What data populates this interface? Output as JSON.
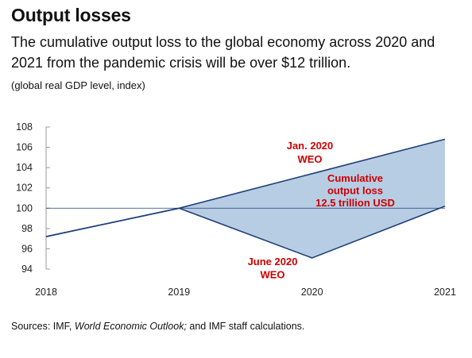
{
  "header": {
    "title": "Output losses",
    "subtitle": "The cumulative output loss to the global economy across 2020 and 2021 from the pandemic crisis will be over $12 trillion.",
    "units": "(global real GDP level, index)"
  },
  "footer": {
    "sources_prefix": "Sources: IMF, ",
    "sources_italic": "World Economic Outlook;",
    "sources_suffix": " and IMF staff calculations."
  },
  "chart_data": {
    "type": "line",
    "x": [
      2018,
      2019,
      2020,
      2021
    ],
    "xticks": [
      "2018",
      "2019",
      "2020",
      "2021"
    ],
    "yticks": [
      "94",
      "96",
      "98",
      "100",
      "102",
      "104",
      "106",
      "108"
    ],
    "ylim": [
      94,
      108
    ],
    "xlim": [
      2018,
      2021
    ],
    "reference_line": 100,
    "series": [
      {
        "name": "Jan. 2020 WEO",
        "x": [
          2018,
          2019,
          2020,
          2021
        ],
        "values": [
          97.2,
          100.0,
          103.4,
          106.8
        ]
      },
      {
        "name": "June 2020 WEO",
        "x": [
          2018,
          2019,
          2020,
          2021
        ],
        "values": [
          97.2,
          100.0,
          95.1,
          100.2
        ]
      }
    ],
    "shaded_area": {
      "between": [
        "Jan. 2020 WEO",
        "June 2020 WEO"
      ],
      "from": 2019,
      "to": 2021
    },
    "annotations": [
      {
        "text_lines": [
          "Jan. 2020",
          "WEO"
        ]
      },
      {
        "text_lines": [
          "Cumulative",
          "output loss",
          "12.5 trillion USD"
        ]
      },
      {
        "text_lines": [
          "June 2020",
          "WEO"
        ]
      }
    ],
    "colors": {
      "line": "#1f3f7a",
      "fill": "#b7cde3",
      "annotation": "#cc0000",
      "axis": "#333333"
    }
  }
}
